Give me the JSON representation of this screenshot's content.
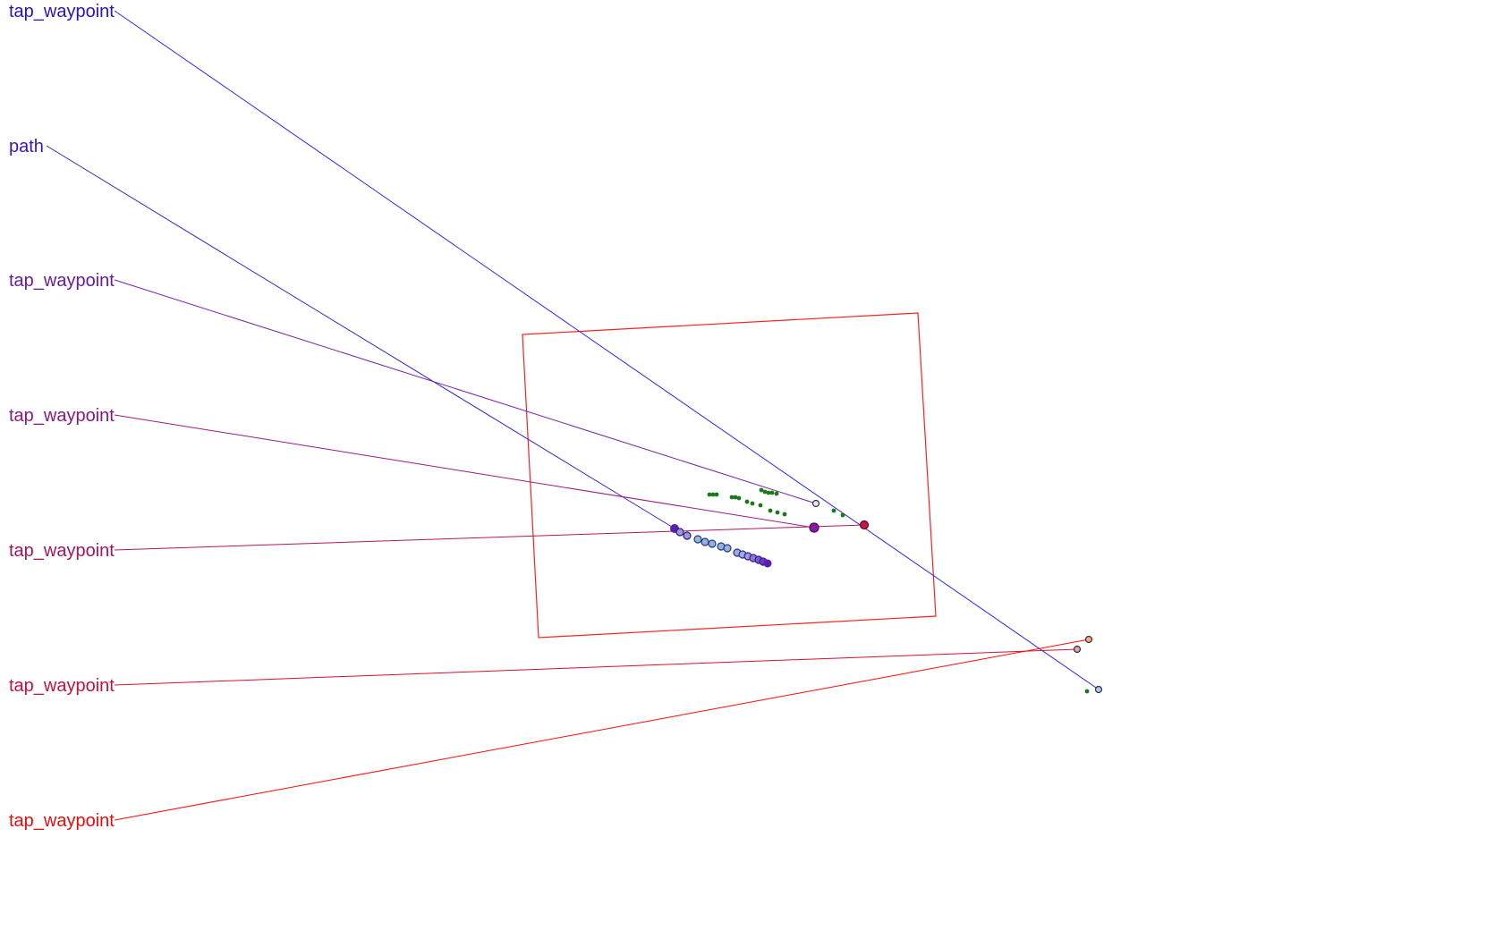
{
  "labels": [
    {
      "text": "tap_waypoint",
      "color": "#2a10c8"
    },
    {
      "text": "path",
      "color": "#3c14b8"
    },
    {
      "text": "tap_waypoint",
      "color": "#6a1aa0"
    },
    {
      "text": "tap_waypoint",
      "color": "#8a1880"
    },
    {
      "text": "tap_waypoint",
      "color": "#a61460"
    },
    {
      "text": "tap_waypoint",
      "color": "#c8103a"
    },
    {
      "text": "tap_waypoint",
      "color": "#ee0a0a"
    }
  ],
  "colors": {
    "region_outline": "#ff2020",
    "green_points": "#1a7a1a",
    "path_points": "#5a1fb0",
    "blue_leader": "#2a2aff"
  }
}
